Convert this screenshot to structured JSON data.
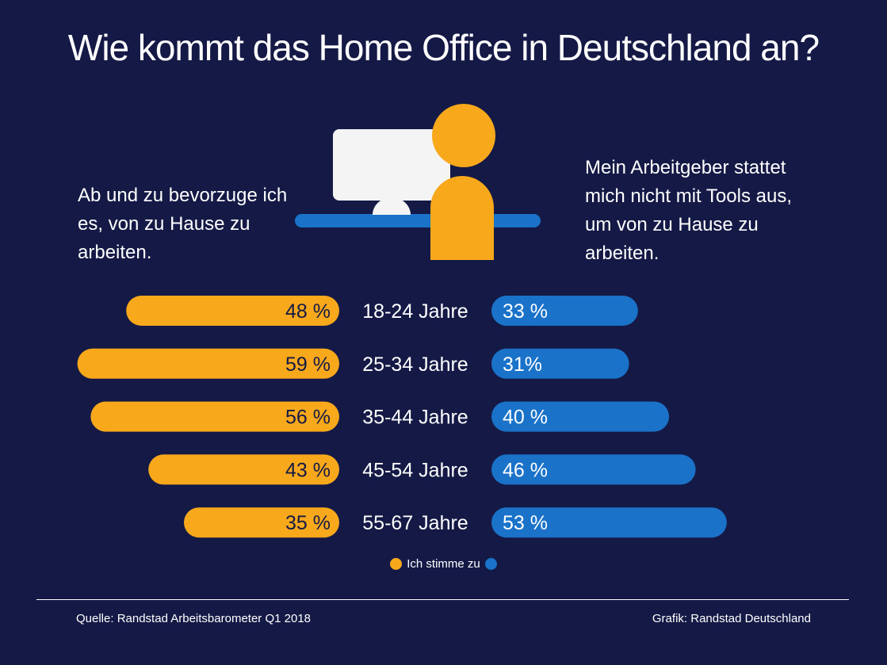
{
  "title": "Wie kommt das Home Office in Deutschland an?",
  "left_caption": "Ab und zu bevorzuge ich es, von zu Hause zu arbeiten.",
  "right_caption": "Mein Arbeitgeber stattet mich nicht mit Tools aus, um von zu Hause zu arbeiten.",
  "legend_label": "Ich stimme zu",
  "source": "Quelle: Randstad Arbeitsbarometer Q1 2018",
  "credit": "Grafik: Randstad Deutschland",
  "colors": {
    "background": "#141a45",
    "orange": "#f7a81b",
    "blue": "#1a73c9",
    "monitor": "#f4f4f4",
    "text": "#ffffff",
    "bar_text": "#141a45"
  },
  "chart_data": {
    "type": "bar",
    "categories": [
      "18-24 Jahre",
      "25-34 Jahre",
      "35-44 Jahre",
      "45-54 Jahre",
      "55-67 Jahre"
    ],
    "series": [
      {
        "values": [
          48,
          59,
          56,
          43,
          35
        ],
        "labels": [
          "48 %",
          "59 %",
          "56 %",
          "43 %",
          "35 %"
        ],
        "color": "#f7a81b"
      },
      {
        "values": [
          33,
          31,
          40,
          46,
          53
        ],
        "labels": [
          "33 %",
          "31%",
          "40 %",
          "46 %",
          "53 %"
        ],
        "color": "#1a73c9"
      }
    ],
    "xlim": [
      0,
      60
    ]
  }
}
